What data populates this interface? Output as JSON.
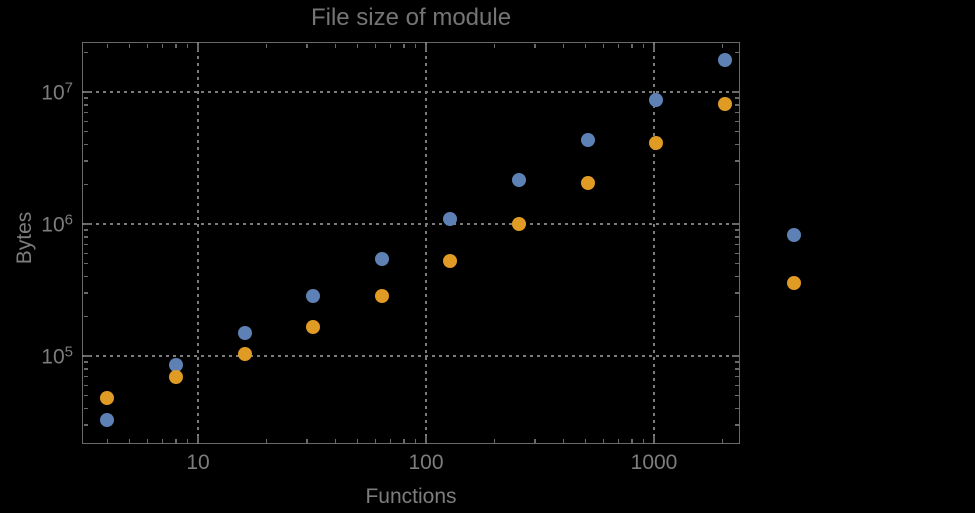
{
  "chart_data": {
    "type": "scatter",
    "title": "File size of module",
    "xlabel": "Functions",
    "ylabel": "Bytes",
    "x_scale": "log",
    "y_scale": "log",
    "x_range_approx": [
      3.1,
      2400
    ],
    "y_range_approx": [
      21500,
      24000000
    ],
    "grid": {
      "style": "dotted",
      "x_lines": [
        10,
        100,
        1000
      ],
      "y_lines": [
        100000,
        1000000,
        10000000
      ]
    },
    "x_ticks": [
      {
        "value": 10,
        "label": "10"
      },
      {
        "value": 100,
        "label": "100"
      },
      {
        "value": 1000,
        "label": "1000"
      }
    ],
    "y_ticks": [
      {
        "value": 100000,
        "label": "10^5",
        "base": "10",
        "exp": "5"
      },
      {
        "value": 1000000,
        "label": "10^6",
        "base": "10",
        "exp": "6"
      },
      {
        "value": 10000000,
        "label": "10^7",
        "base": "10",
        "exp": "7"
      }
    ],
    "legend": "none",
    "series": [
      {
        "name": "series-blue",
        "color": "#5E81B5",
        "x": [
          4,
          8,
          16,
          32,
          64,
          128,
          256,
          512,
          1024,
          2048,
          4096
        ],
        "y": [
          33000,
          86000,
          150000,
          285000,
          545000,
          1090000,
          2150000,
          4330000,
          8700000,
          17500000,
          825000
        ]
      },
      {
        "name": "series-orange",
        "color": "#E09B24",
        "x": [
          4,
          8,
          16,
          32,
          64,
          128,
          256,
          512,
          1024,
          2048,
          4096
        ],
        "y": [
          48000,
          69000,
          104000,
          166000,
          285000,
          525000,
          1000000,
          2050000,
          4100000,
          8100000,
          360000
        ]
      }
    ]
  },
  "colors": {
    "background": "#000000",
    "frame": "#696969",
    "gridline": "#7C7C7C",
    "text": "#7D7D7D",
    "series_blue": "#5E81B5",
    "series_orange": "#E09B24"
  }
}
